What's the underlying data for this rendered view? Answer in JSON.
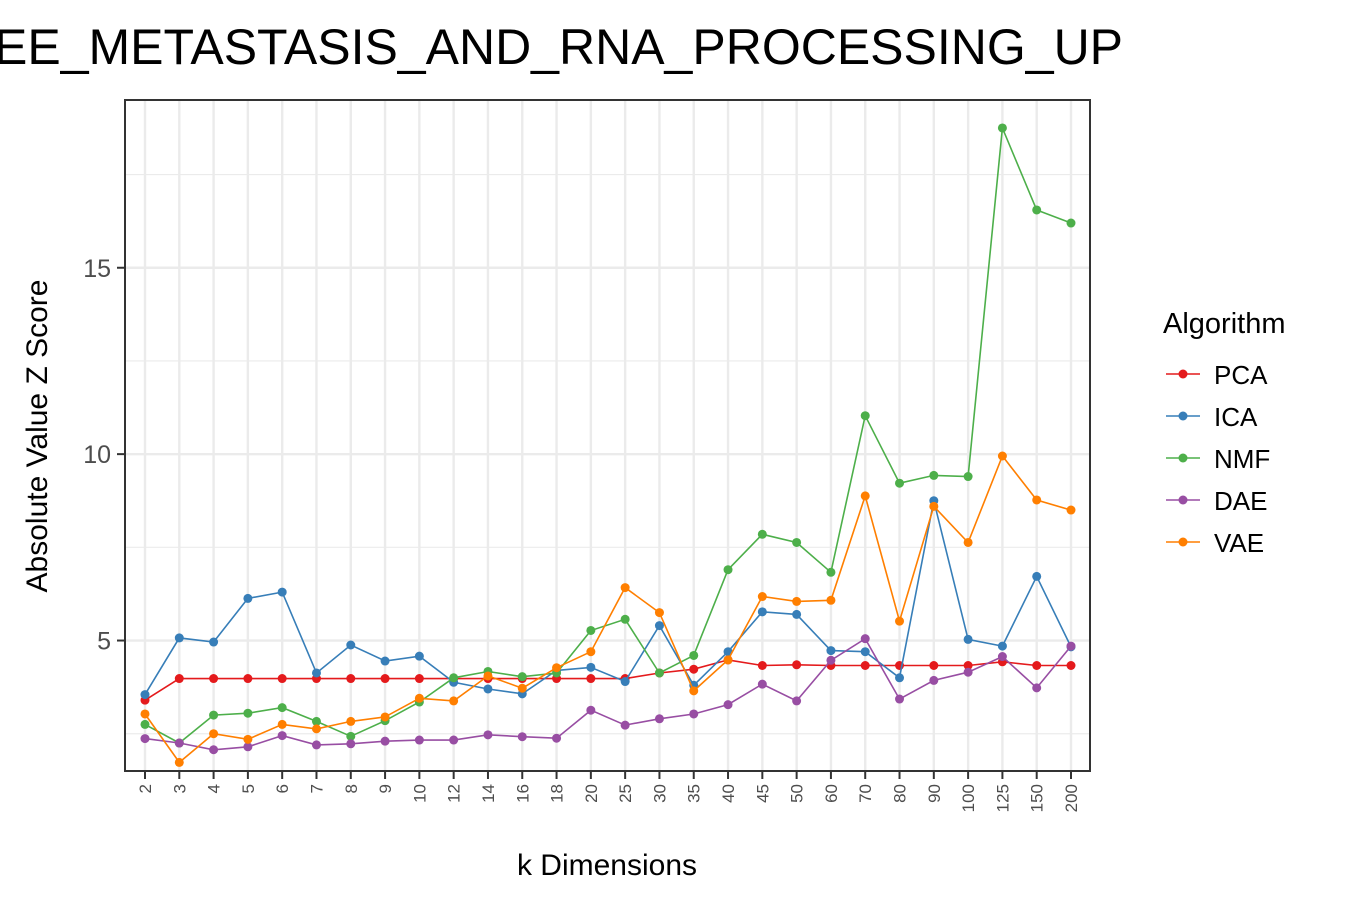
{
  "chart_data": {
    "type": "line",
    "title": "EE_METASTASIS_AND_RNA_PROCESSING_UP",
    "xlabel": "k Dimensions",
    "ylabel": "Absolute Value Z Score",
    "categories": [
      "2",
      "3",
      "4",
      "5",
      "6",
      "7",
      "8",
      "9",
      "10",
      "12",
      "14",
      "16",
      "18",
      "20",
      "25",
      "30",
      "35",
      "40",
      "45",
      "50",
      "60",
      "70",
      "80",
      "90",
      "100",
      "125",
      "150",
      "200"
    ],
    "ylim": [
      1.5,
      19.5
    ],
    "yticks": [
      5,
      10,
      15
    ],
    "grid": true,
    "legend_title": "Algorithm",
    "legend_position": "right",
    "series": [
      {
        "name": "PCA",
        "color": "#E41A1C",
        "values": [
          3.4,
          3.98,
          3.98,
          3.98,
          3.98,
          3.98,
          3.98,
          3.98,
          3.98,
          3.98,
          3.98,
          3.98,
          3.98,
          3.98,
          3.98,
          4.13,
          4.23,
          4.48,
          4.33,
          4.35,
          4.33,
          4.33,
          4.33,
          4.33,
          4.33,
          4.43,
          4.33,
          4.33
        ]
      },
      {
        "name": "ICA",
        "color": "#377EB8",
        "values": [
          3.55,
          5.07,
          4.96,
          6.13,
          6.3,
          4.13,
          4.88,
          4.45,
          4.58,
          3.88,
          3.7,
          3.57,
          4.2,
          4.28,
          3.9,
          5.4,
          3.8,
          4.7,
          5.77,
          5.7,
          4.73,
          4.7,
          4.0,
          8.75,
          5.03,
          4.85,
          6.72,
          4.83
        ]
      },
      {
        "name": "NMF",
        "color": "#4DAF4A",
        "values": [
          2.75,
          2.25,
          3.0,
          3.05,
          3.2,
          2.83,
          2.43,
          2.85,
          3.35,
          4.0,
          4.17,
          4.03,
          4.13,
          5.27,
          5.57,
          4.13,
          4.6,
          6.9,
          7.85,
          7.63,
          6.83,
          11.03,
          9.22,
          9.43,
          9.4,
          18.75,
          16.55,
          16.2
        ]
      },
      {
        "name": "DAE",
        "color": "#984EA3",
        "values": [
          2.37,
          2.25,
          2.07,
          2.15,
          2.45,
          2.2,
          2.23,
          2.3,
          2.33,
          2.33,
          2.47,
          2.42,
          2.38,
          3.13,
          2.73,
          2.9,
          3.03,
          3.28,
          3.83,
          3.38,
          4.47,
          5.05,
          3.43,
          3.93,
          4.15,
          4.57,
          3.73,
          4.85
        ]
      },
      {
        "name": "VAE",
        "color": "#FF7F00",
        "values": [
          3.03,
          1.73,
          2.5,
          2.35,
          2.75,
          2.63,
          2.83,
          2.95,
          3.45,
          3.38,
          4.05,
          3.72,
          4.27,
          4.7,
          6.42,
          5.75,
          3.65,
          4.48,
          6.18,
          6.05,
          6.08,
          8.88,
          5.52,
          8.6,
          7.63,
          9.95,
          8.77,
          8.5
        ]
      }
    ]
  }
}
